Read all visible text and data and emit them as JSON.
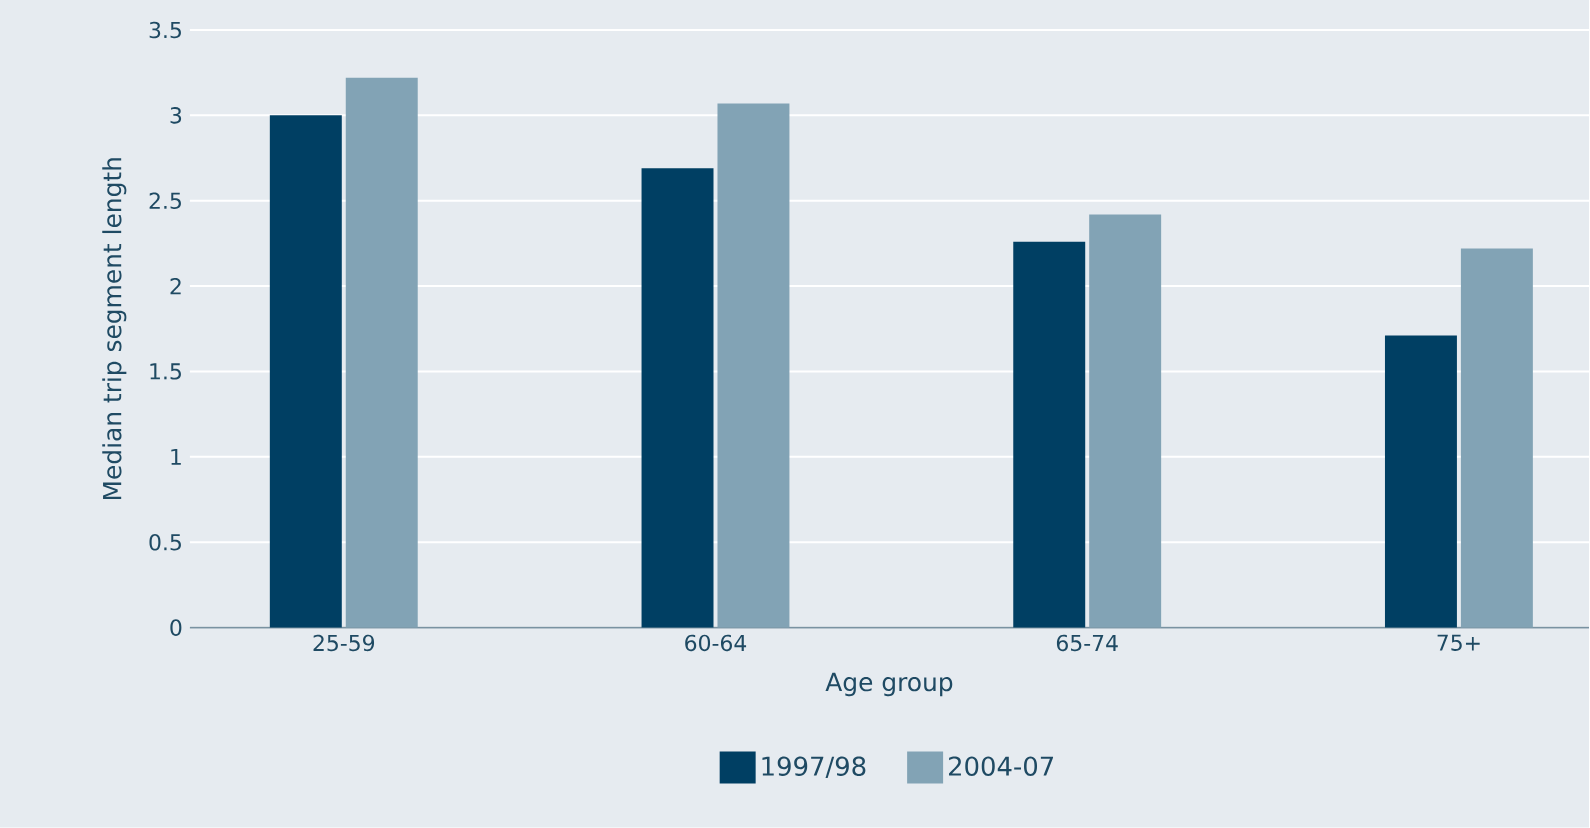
{
  "chart_data": {
    "type": "bar",
    "xlabel": "Age group",
    "ylabel": "Median trip segment length",
    "categories": [
      "25-59",
      "60-64",
      "65-74",
      "75+"
    ],
    "series": [
      {
        "name": "1997/98",
        "color": "#003f63",
        "values": [
          3.0,
          2.69,
          2.26,
          1.71
        ]
      },
      {
        "name": "2004-07",
        "color": "#82a3b5",
        "values": [
          3.22,
          3.07,
          2.42,
          2.22
        ]
      }
    ],
    "ylim": [
      0,
      3.5
    ],
    "yticks": [
      0,
      0.5,
      1,
      1.5,
      2,
      2.5,
      3,
      3.5
    ],
    "grid": "y",
    "legend": "bottom"
  }
}
